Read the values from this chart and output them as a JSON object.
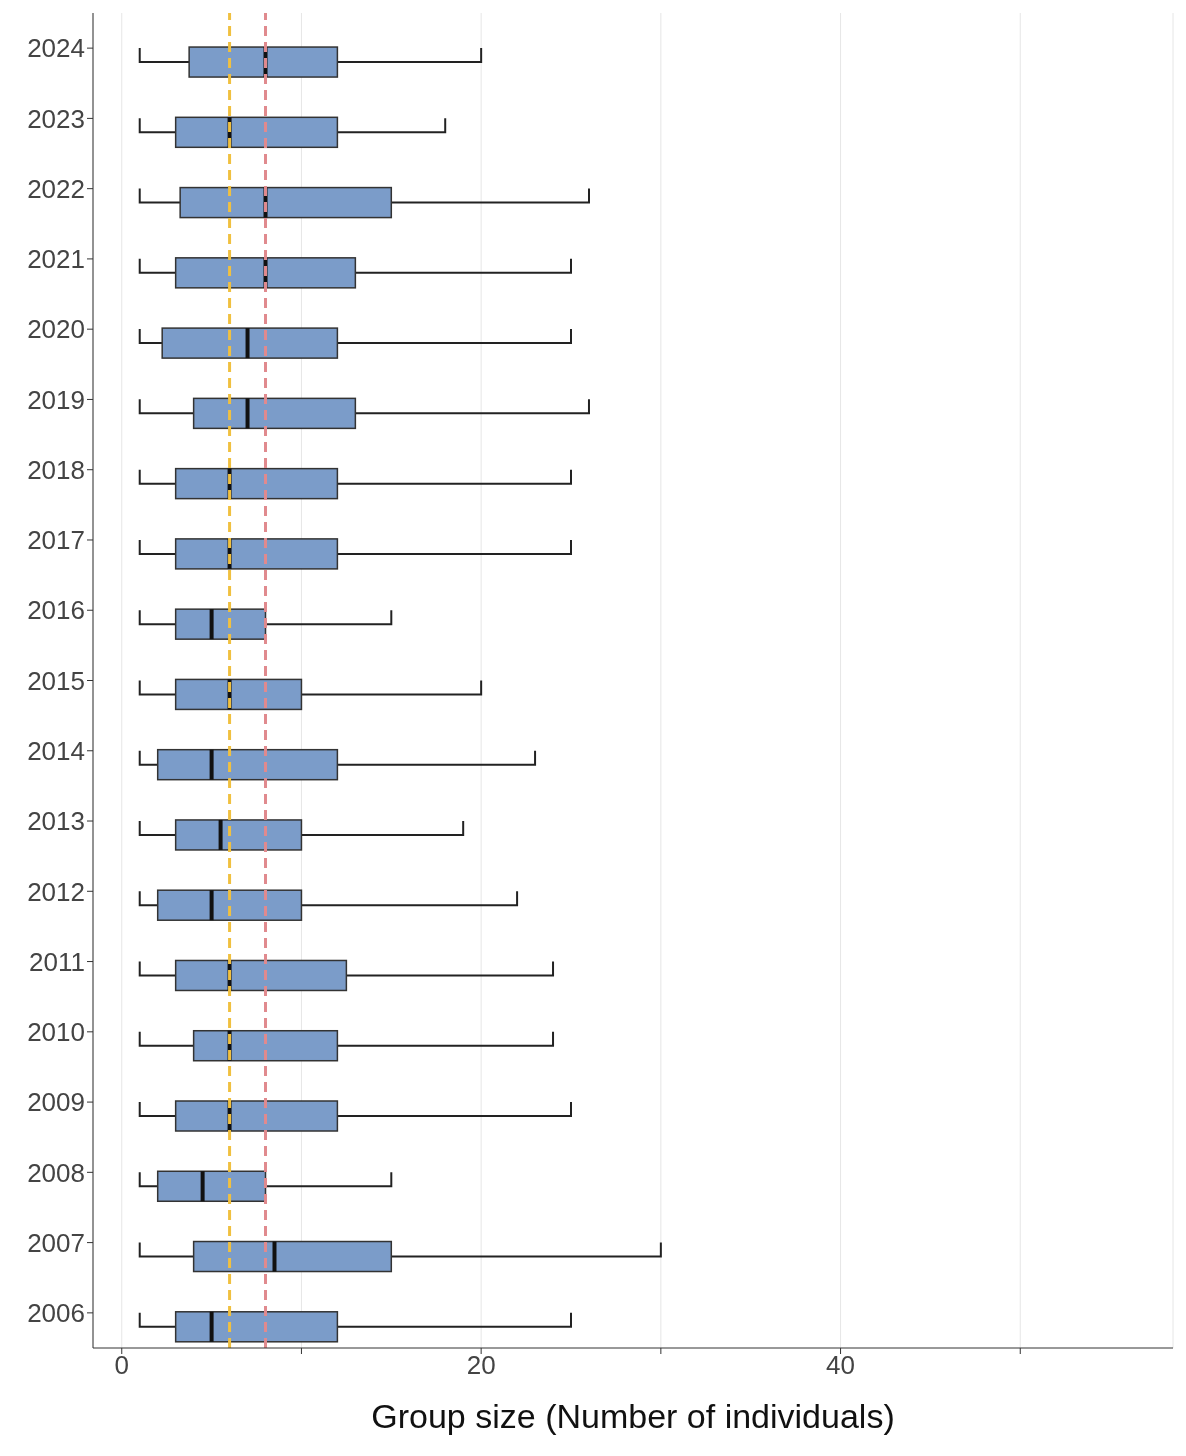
{
  "chart_data": {
    "type": "box",
    "orientation": "horizontal",
    "xlabel": "Group size (Number of individuals)",
    "categories": [
      "2024",
      "2023",
      "2022",
      "2021",
      "2020",
      "2019",
      "2018",
      "2017",
      "2016",
      "2015",
      "2014",
      "2013",
      "2012",
      "2011",
      "2010",
      "2009",
      "2008",
      "2007",
      "2006"
    ],
    "color": "#7b9cc9",
    "boxes": [
      {
        "low": 1,
        "q1": 3.75,
        "median": 8,
        "q3": 12,
        "high": 20
      },
      {
        "low": 1,
        "q1": 3,
        "median": 6,
        "q3": 12,
        "high": 18
      },
      {
        "low": 1,
        "q1": 3.25,
        "median": 8,
        "q3": 15,
        "high": 26
      },
      {
        "low": 1,
        "q1": 3,
        "median": 8,
        "q3": 13,
        "high": 25
      },
      {
        "low": 1,
        "q1": 2.25,
        "median": 7,
        "q3": 12,
        "high": 25
      },
      {
        "low": 1,
        "q1": 4,
        "median": 7,
        "q3": 13,
        "high": 26
      },
      {
        "low": 1,
        "q1": 3,
        "median": 6,
        "q3": 12,
        "high": 25
      },
      {
        "low": 1,
        "q1": 3,
        "median": 6,
        "q3": 12,
        "high": 25
      },
      {
        "low": 1,
        "q1": 3,
        "median": 5,
        "q3": 8,
        "high": 15
      },
      {
        "low": 1,
        "q1": 3,
        "median": 6,
        "q3": 10,
        "high": 20
      },
      {
        "low": 1,
        "q1": 2,
        "median": 5,
        "q3": 12,
        "high": 23
      },
      {
        "low": 1,
        "q1": 3,
        "median": 5.5,
        "q3": 10,
        "high": 19
      },
      {
        "low": 1,
        "q1": 2,
        "median": 5,
        "q3": 10,
        "high": 22
      },
      {
        "low": 1,
        "q1": 3,
        "median": 6,
        "q3": 12.5,
        "high": 24
      },
      {
        "low": 1,
        "q1": 4,
        "median": 6,
        "q3": 12,
        "high": 24
      },
      {
        "low": 1,
        "q1": 3,
        "median": 6,
        "q3": 12,
        "high": 25
      },
      {
        "low": 1,
        "q1": 2,
        "median": 4.5,
        "q3": 8,
        "high": 15
      },
      {
        "low": 1,
        "q1": 4,
        "median": 8.5,
        "q3": 15,
        "high": 30
      },
      {
        "low": 1,
        "q1": 3,
        "median": 5,
        "q3": 12,
        "high": 25
      }
    ],
    "xlim": [
      -1.6,
      58.5
    ],
    "xticks": [
      0,
      {
        "value": 10,
        "label": null
      },
      20,
      {
        "value": 30,
        "label": null
      },
      40,
      {
        "value": 50,
        "label": null
      }
    ],
    "grid": "x",
    "ref_lines": [
      {
        "axis": "x",
        "value": 6,
        "color": "#f0c040",
        "line_style": "dashed"
      },
      {
        "axis": "x",
        "value": 8,
        "color": "#e08a8e",
        "line_style": "dashed"
      }
    ]
  }
}
